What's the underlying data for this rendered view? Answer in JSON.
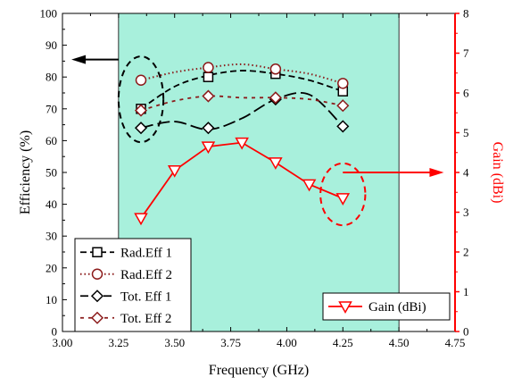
{
  "chart_data": {
    "type": "line",
    "xlabel": "Frequency (GHz)",
    "ylabel_left": "Efficiency (%)",
    "ylabel_right": "Gain (dBi)",
    "xlim": [
      3.0,
      4.75
    ],
    "xticks": [
      "3.00",
      "3.25",
      "3.50",
      "3.75",
      "4.00",
      "4.25",
      "4.50",
      "4.75"
    ],
    "ylim_left": [
      0,
      100
    ],
    "yticks_left": [
      "0",
      "10",
      "20",
      "30",
      "40",
      "50",
      "60",
      "70",
      "80",
      "90",
      "100"
    ],
    "ylim_right": [
      0,
      8
    ],
    "yticks_right": [
      "0",
      "1",
      "2",
      "3",
      "4",
      "5",
      "6",
      "7",
      "8"
    ],
    "shaded_band": {
      "x_from": 3.25,
      "x_to": 4.5,
      "color": "#a8f0dc"
    },
    "colors": {
      "black": "#000000",
      "darkred": "#8b1a1a",
      "red": "#ff0000"
    },
    "series": [
      {
        "name": "Rad.Eff 1",
        "axis": "left",
        "marker": "square",
        "line": "dashed",
        "color": "#000000",
        "markers": {
          "x": [
            3.35,
            3.65,
            3.95,
            4.25
          ],
          "y": [
            70,
            80,
            81,
            75.5
          ]
        },
        "curve": {
          "x": [
            3.35,
            3.5,
            3.65,
            3.8,
            3.95,
            4.1,
            4.25
          ],
          "y": [
            70,
            77,
            80.5,
            82,
            81,
            79,
            75.5
          ]
        }
      },
      {
        "name": "Rad.Eff 2",
        "axis": "left",
        "marker": "circle",
        "line": "dotted",
        "color": "#8b1a1a",
        "markers": {
          "x": [
            3.35,
            3.65,
            3.95,
            4.25
          ],
          "y": [
            79,
            83,
            82.5,
            78
          ]
        },
        "curve": {
          "x": [
            3.35,
            3.5,
            3.65,
            3.8,
            3.95,
            4.1,
            4.25
          ],
          "y": [
            79,
            81.5,
            83,
            84,
            82.5,
            81,
            78
          ]
        }
      },
      {
        "name": "Tot. Eff 1",
        "axis": "left",
        "marker": "diamond",
        "line": "longdash",
        "color": "#000000",
        "markers": {
          "x": [
            3.35,
            3.65,
            3.95,
            4.25
          ],
          "y": [
            64,
            64,
            73,
            64.5
          ]
        },
        "curve": {
          "x": [
            3.35,
            3.5,
            3.65,
            3.8,
            3.95,
            4.1,
            4.25
          ],
          "y": [
            64,
            66,
            63.5,
            67,
            73,
            74.5,
            64.5
          ]
        }
      },
      {
        "name": "Tot. Eff 2",
        "axis": "left",
        "marker": "diamond",
        "line": "shortdash",
        "color": "#8b1a1a",
        "markers": {
          "x": [
            3.35,
            3.65,
            3.95,
            4.25
          ],
          "y": [
            69.5,
            74,
            73.5,
            71
          ]
        },
        "curve": {
          "x": [
            3.35,
            3.5,
            3.65,
            3.8,
            3.95,
            4.1,
            4.25
          ],
          "y": [
            69.5,
            72.5,
            74,
            73.5,
            73.5,
            73,
            71
          ]
        }
      },
      {
        "name": "Gain (dBi)",
        "axis": "right",
        "marker": "triangle-down",
        "line": "solid",
        "color": "#ff0000",
        "markers": {
          "x": [
            3.35,
            3.5,
            3.65,
            3.8,
            3.95,
            4.1,
            4.25
          ],
          "y": [
            2.85,
            4.05,
            4.65,
            4.75,
            4.25,
            3.7,
            3.35
          ]
        },
        "curve": {
          "x": [
            3.35,
            3.5,
            3.65,
            3.8,
            3.95,
            4.1,
            4.25
          ],
          "y": [
            2.85,
            4.05,
            4.65,
            4.75,
            4.25,
            3.7,
            3.35
          ]
        }
      }
    ],
    "annotations": [
      {
        "type": "ellipse",
        "color": "#000000",
        "target_axis": "left",
        "cx": 3.35,
        "cy": 73,
        "rx_data": 0.1,
        "ry_data": 13.5
      },
      {
        "type": "arrow",
        "color": "#000000",
        "direction": "left",
        "from": [
          3.25,
          85.5
        ],
        "to": [
          3.04,
          85.5
        ]
      },
      {
        "type": "ellipse",
        "color": "#ff0000",
        "target_axis": "right",
        "cx": 4.25,
        "cy": 3.45,
        "rx_data": 0.1,
        "ry_data": 0.78
      },
      {
        "type": "arrow",
        "color": "#ff0000",
        "direction": "right",
        "from": [
          4.25,
          4.0
        ],
        "to": [
          4.7,
          4.0
        ]
      }
    ],
    "legend_left": {
      "placement": "bottom-left",
      "entries": [
        "Rad.Eff 1",
        "Rad.Eff 2",
        "Tot. Eff 1",
        "Tot. Eff 2"
      ]
    },
    "legend_right": {
      "placement": "bottom-right",
      "entries": [
        "Gain (dBi)"
      ]
    }
  }
}
